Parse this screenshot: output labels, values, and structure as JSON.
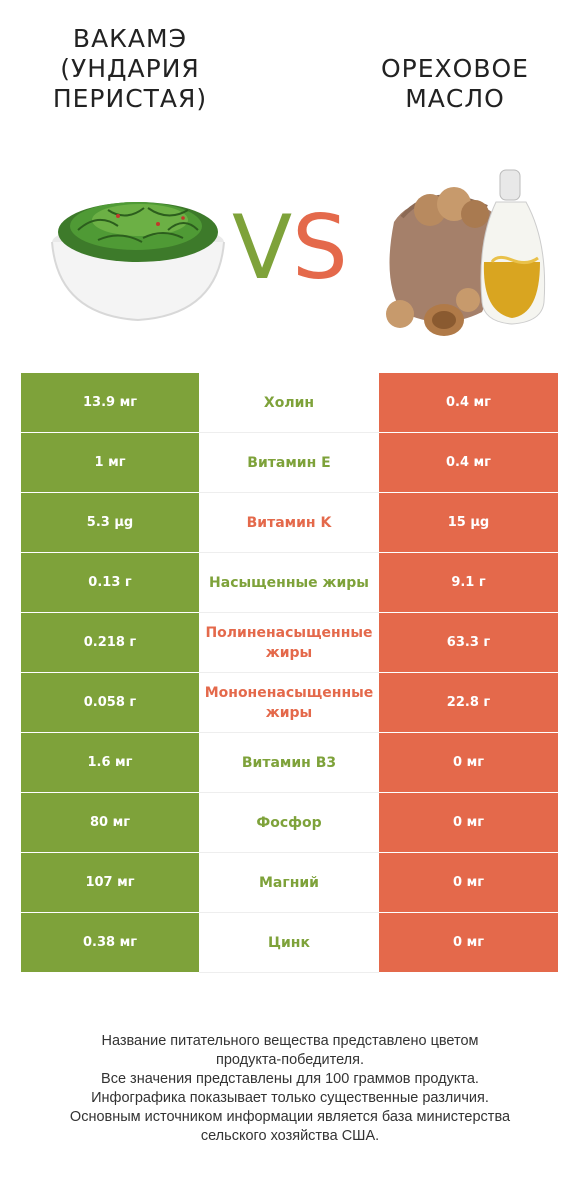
{
  "header": {
    "left_title": "ВАКАМЭ (УНДАРИЯ ПЕРИСТАЯ)",
    "right_title": "ОРЕХОВОЕ МАСЛО",
    "vs_v": "V",
    "vs_s": "S"
  },
  "colors": {
    "left": "#7ea23a",
    "right": "#e4694b"
  },
  "rows": [
    {
      "nutrient": "Холин",
      "left": "13.9 мг",
      "right": "0.4 мг",
      "winner": "left"
    },
    {
      "nutrient": "Витамин E",
      "left": "1 мг",
      "right": "0.4 мг",
      "winner": "left"
    },
    {
      "nutrient": "Витамин K",
      "left": "5.3 µg",
      "right": "15 µg",
      "winner": "right"
    },
    {
      "nutrient": "Насыщенные жиры",
      "left": "0.13 г",
      "right": "9.1 г",
      "winner": "left"
    },
    {
      "nutrient": "Полиненасыщенные жиры",
      "left": "0.218 г",
      "right": "63.3 г",
      "winner": "right"
    },
    {
      "nutrient": "Мононенасыщенные жиры",
      "left": "0.058 г",
      "right": "22.8 г",
      "winner": "right"
    },
    {
      "nutrient": "Витамин B3",
      "left": "1.6 мг",
      "right": "0 мг",
      "winner": "left"
    },
    {
      "nutrient": "Фосфор",
      "left": "80 мг",
      "right": "0 мг",
      "winner": "left"
    },
    {
      "nutrient": "Магний",
      "left": "107 мг",
      "right": "0 мг",
      "winner": "left"
    },
    {
      "nutrient": "Цинк",
      "left": "0.38 мг",
      "right": "0 мг",
      "winner": "left"
    }
  ],
  "footer": {
    "line1": "Название питательного вещества представлено цветом",
    "line2": "продукта-победителя.",
    "line3": "Все значения представлены для 100 граммов продукта.",
    "line4": "Инфографика показывает только существенные различия.",
    "line5": "Основным источником информации является база министерства",
    "line6": "сельского хозяйства США."
  }
}
